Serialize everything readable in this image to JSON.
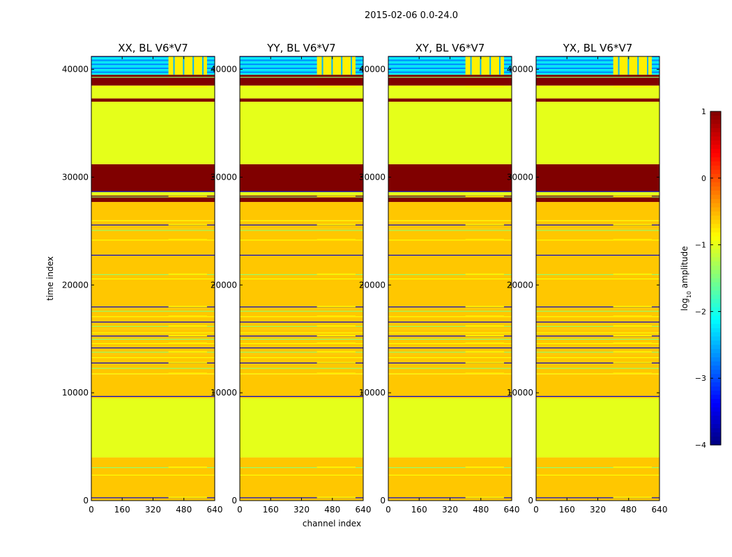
{
  "chart_data": {
    "type": "heatmap",
    "suptitle": "2015-02-06 0.0-24.0",
    "xlabel": "channel index",
    "ylabel": "time index",
    "xlim": [
      0,
      640
    ],
    "ylim": [
      0,
      41200
    ],
    "xticks": [
      0,
      160,
      320,
      480,
      640
    ],
    "yticks": [
      0,
      10000,
      20000,
      30000,
      40000
    ],
    "panels": [
      {
        "title": "XX, BL V6*V7"
      },
      {
        "title": "YY, BL V6*V7"
      },
      {
        "title": "XY, BL V6*V7"
      },
      {
        "title": "YX, BL V6*V7"
      }
    ],
    "colorbar": {
      "label_prefix": "log",
      "label_sub": "10",
      "label_suffix": " amplitude",
      "range": [
        -4,
        1
      ],
      "ticks": [
        1,
        0,
        -1,
        -2,
        -3,
        -4
      ],
      "tick_labels": [
        "1",
        "0",
        "−1",
        "−2",
        "−3",
        "−4"
      ],
      "colormap": "jet"
    },
    "time_bands": [
      {
        "from": 0,
        "to": 4000,
        "value": -0.6
      },
      {
        "from": 4000,
        "to": 9500,
        "value": -1.0
      },
      {
        "from": 9500,
        "to": 11700,
        "value": -0.6
      },
      {
        "from": 11700,
        "to": 13600,
        "value": -0.6
      },
      {
        "from": 13600,
        "to": 15900,
        "value": -0.6
      },
      {
        "from": 15900,
        "to": 17800,
        "value": -0.6
      },
      {
        "from": 17800,
        "to": 25200,
        "value": -0.6
      },
      {
        "from": 25200,
        "to": 26000,
        "value": -0.6
      },
      {
        "from": 26000,
        "to": 27700,
        "value": -0.6
      },
      {
        "from": 27700,
        "to": 28300,
        "value": 1.0
      },
      {
        "from": 28300,
        "to": 28700,
        "value": -1.0
      },
      {
        "from": 28700,
        "to": 31200,
        "value": 1.0
      },
      {
        "from": 31200,
        "to": 37000,
        "value": -1.0
      },
      {
        "from": 37000,
        "to": 37300,
        "value": 1.0
      },
      {
        "from": 37300,
        "to": 38500,
        "value": -1.0
      },
      {
        "from": 38500,
        "to": 39500,
        "value": 1.0
      },
      {
        "from": 39500,
        "to": 41200,
        "value": -2.2
      }
    ],
    "flagged_lines": [
      300,
      2400,
      3100,
      9700,
      11800,
      12300,
      12800,
      13300,
      13800,
      14200,
      14600,
      15000,
      15300,
      15600,
      16200,
      16600,
      17100,
      17600,
      18000,
      20600,
      21000,
      22800,
      24200,
      25100,
      25600,
      26000,
      28200,
      28700,
      38400,
      39300
    ],
    "rfi_channel_range": [
      400,
      600
    ]
  }
}
